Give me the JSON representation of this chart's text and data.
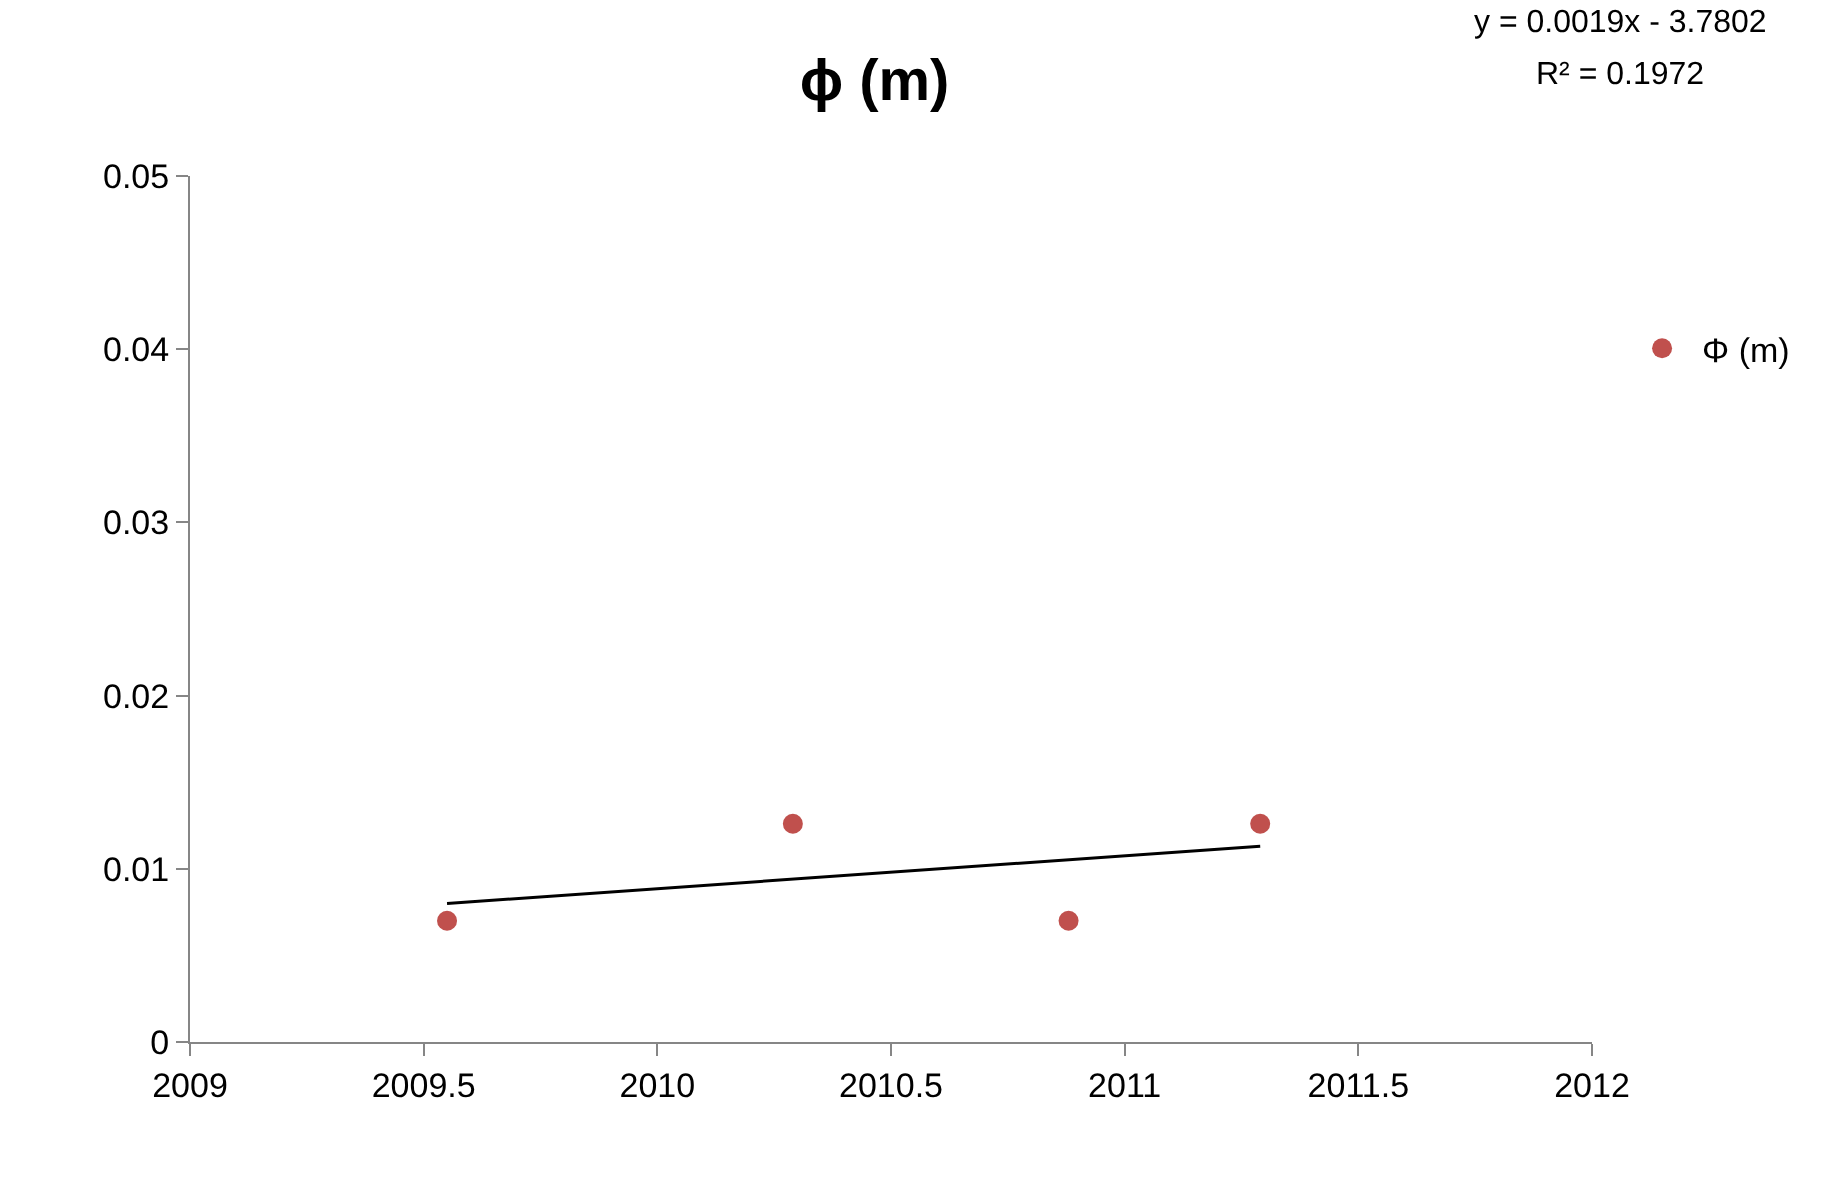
{
  "chart_data": {
    "type": "scatter",
    "title": "ϕ (m)",
    "xlim": [
      2009,
      2012
    ],
    "xticks": [
      2009,
      2009.5,
      2010,
      2010.5,
      2011,
      2011.5,
      2012
    ],
    "ylim": [
      0,
      0.05
    ],
    "yticks": [
      0,
      0.01,
      0.02,
      0.03,
      0.04,
      0.05
    ],
    "grid": false,
    "legend": "right",
    "marker": "circle",
    "series": [
      {
        "name": "Φ (m)",
        "color": "#c0504d",
        "x": [
          2009.55,
          2010.29,
          2010.88,
          2011.29
        ],
        "values": [
          0.007,
          0.0126,
          0.007,
          0.0126
        ]
      },
      {
        "type": "line",
        "marker": "none",
        "color": "#000000",
        "x": [
          2009.55,
          2011.29
        ],
        "values": [
          0.008,
          0.0113
        ]
      }
    ],
    "annotations": [
      "y = 0.0019x - 3.7802",
      "R² = 0.1972"
    ]
  }
}
